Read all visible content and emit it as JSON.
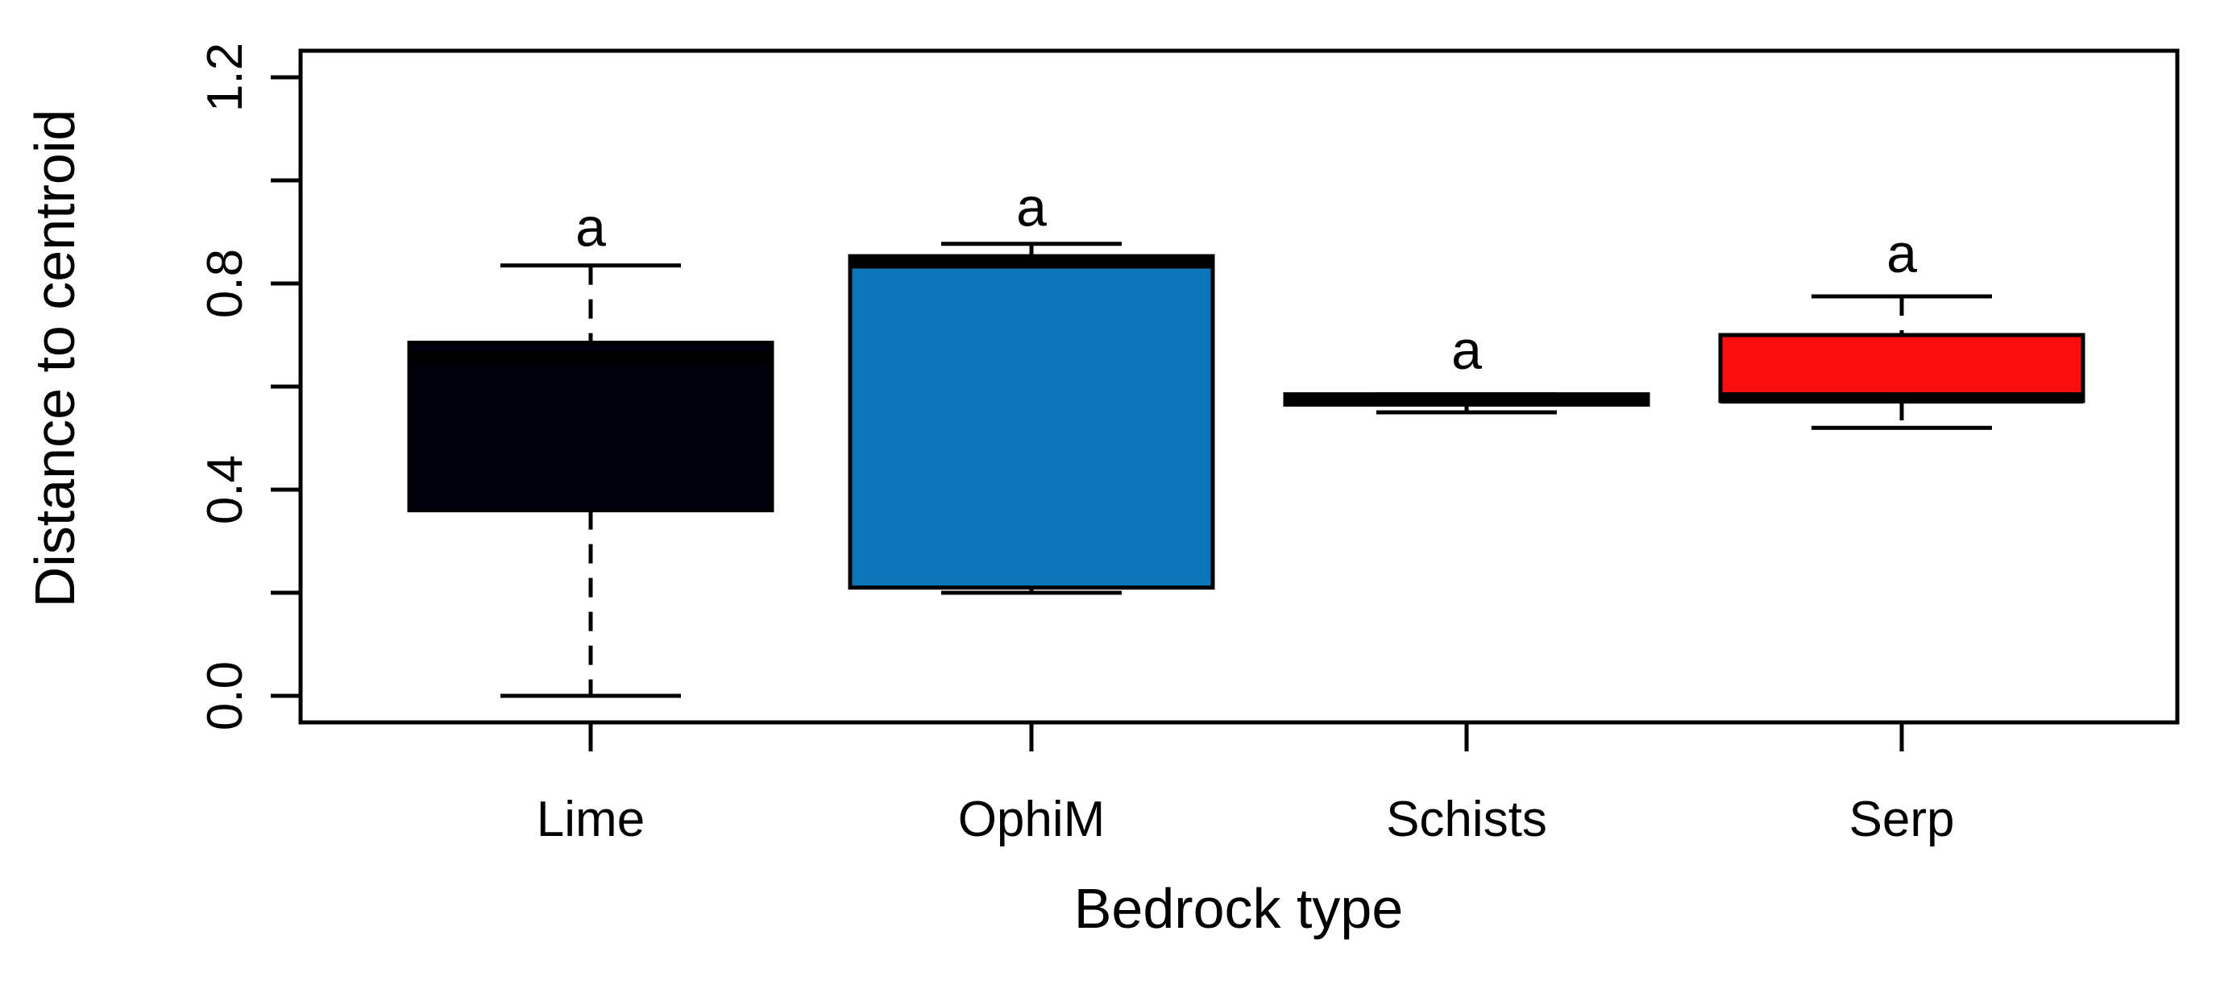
{
  "page": {
    "background": "#ffffff",
    "frame_color": "#000000"
  },
  "chart_data": {
    "type": "box",
    "title": "",
    "xlabel": "Bedrock type",
    "ylabel": "Distance to centroid",
    "categories": [
      "Lime",
      "OphiM",
      "Schists",
      "Serp"
    ],
    "grid": false,
    "framed": true,
    "legend_position": "none",
    "y_axis": {
      "min": 0.0,
      "max": 1.2,
      "tick_step": 0.2,
      "all_tick_values": [
        0.0,
        0.2,
        0.4,
        0.6,
        0.8,
        1.0,
        1.2
      ],
      "labeled_tick_values": [
        0.0,
        0.4,
        0.8,
        1.2
      ],
      "labeled_tick_texts": [
        "0.0",
        "0.4",
        "0.8",
        "1.2"
      ],
      "label_rotation_deg": -90
    },
    "series": [
      {
        "name": "Lime",
        "fill_color": "#01010e",
        "border_color": "#000000",
        "whisker_low": 0.0,
        "q1": 0.36,
        "median": 0.655,
        "q3": 0.685,
        "whisker_high": 0.835,
        "whisker_style": "dashed",
        "sig_letter": "a",
        "sig_letter_y": 0.873
      },
      {
        "name": "OphiM",
        "fill_color": "#0c76b8",
        "border_color": "#000000",
        "whisker_low": 0.2,
        "q1": 0.21,
        "median": 0.84,
        "q3": 0.853,
        "whisker_high": 0.877,
        "whisker_style": "dashed",
        "sig_letter": "a",
        "sig_letter_y": 0.912
      },
      {
        "name": "Schists",
        "fill_color": "#000000",
        "border_color": "#000000",
        "whisker_low": 0.55,
        "q1": 0.565,
        "median": 0.574,
        "q3": 0.585,
        "whisker_high": 0.585,
        "whisker_style": "dashed",
        "sig_letter": "a",
        "sig_letter_y": 0.634
      },
      {
        "name": "Serp",
        "fill_color": "#f90d0d",
        "border_color": "#000000",
        "whisker_low": 0.52,
        "q1": 0.572,
        "median": 0.578,
        "q3": 0.7,
        "whisker_high": 0.775,
        "whisker_style": "dashed",
        "sig_letter": "a",
        "sig_letter_y": 0.822
      }
    ]
  }
}
